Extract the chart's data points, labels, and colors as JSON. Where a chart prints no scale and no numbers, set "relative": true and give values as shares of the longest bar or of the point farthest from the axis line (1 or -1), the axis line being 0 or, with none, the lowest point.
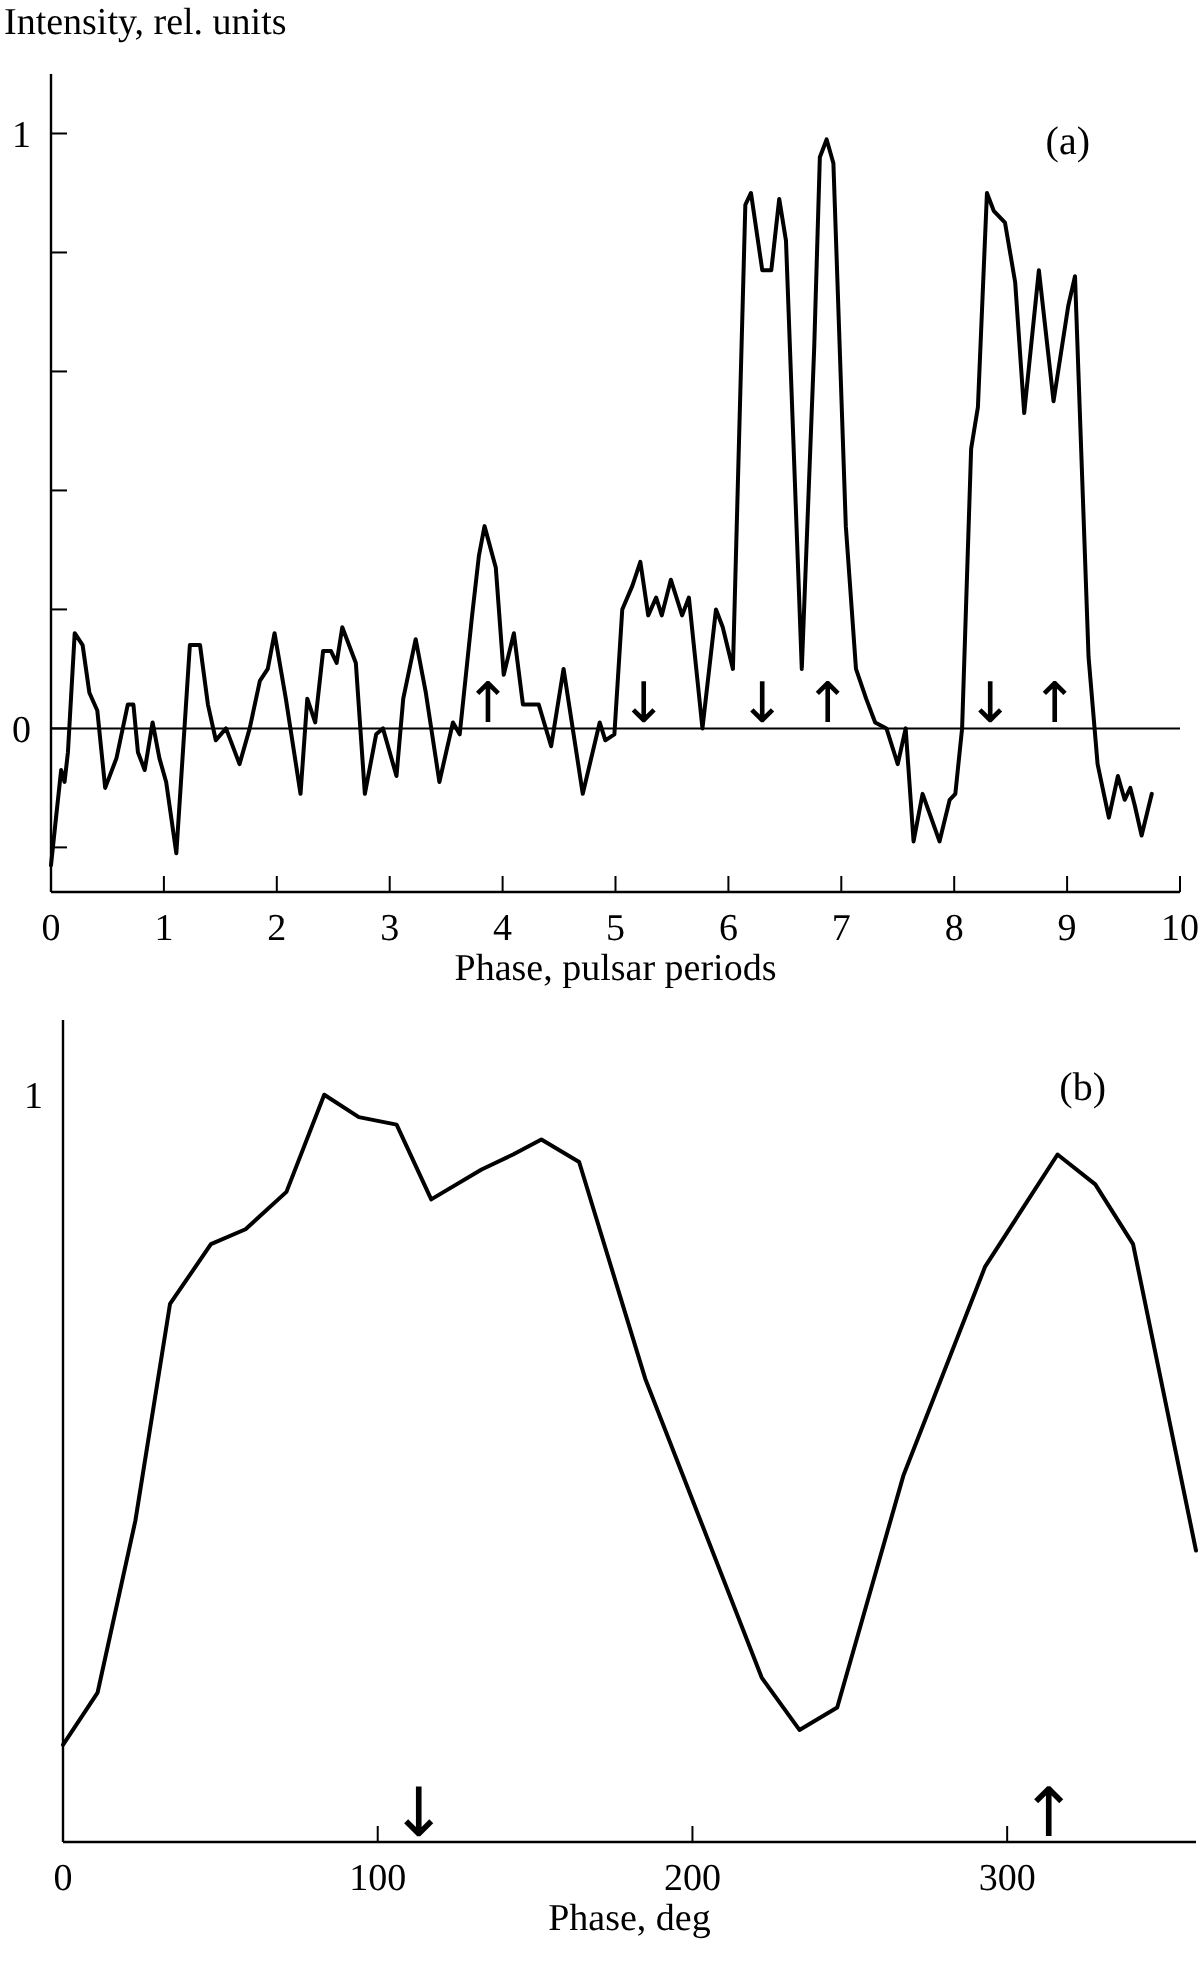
{
  "chart_data": [
    {
      "type": "line",
      "title": "(a)",
      "ylabel": "Intensity, rel. units",
      "xlabel": "Phase, pulsar periods",
      "xlim": [
        0,
        10
      ],
      "xticks": [
        0,
        1,
        2,
        3,
        4,
        5,
        6,
        7,
        8,
        9,
        10
      ],
      "ylim": [
        -0.275,
        1.1
      ],
      "yticks": [
        {
          "value": -0.2,
          "label": null
        },
        0,
        {
          "value": 0.2,
          "label": null
        },
        {
          "value": 0.4,
          "label": null
        },
        {
          "value": 0.6,
          "label": null
        },
        {
          "value": 0.8,
          "label": null
        },
        1
      ],
      "ref_lines": [
        {
          "axis": "y",
          "value": 0,
          "color": "#000000"
        }
      ],
      "annotations": [
        {
          "text": "↑",
          "x": 3.87,
          "y": 0
        },
        {
          "text": "↓",
          "x": 5.25,
          "y": 0
        },
        {
          "text": "↓",
          "x": 6.3,
          "y": 0
        },
        {
          "text": "↑",
          "x": 6.88,
          "y": 0
        },
        {
          "text": "↓",
          "x": 8.32,
          "y": 0
        },
        {
          "text": "↑",
          "x": 8.89,
          "y": 0
        }
      ],
      "marker": "none",
      "line_style": "solid",
      "series": [
        {
          "color": "#000000",
          "x": [
            0,
            0.05,
            0.09,
            0.12,
            0.15,
            0.21,
            0.28,
            0.34,
            0.41,
            0.48,
            0.58,
            0.68,
            0.73,
            0.77,
            0.83,
            0.9,
            0.96,
            1.02,
            1.11,
            1.23,
            1.32,
            1.39,
            1.46,
            1.55,
            1.67,
            1.76,
            1.85,
            1.92,
            1.98,
            2.08,
            2.21,
            2.27,
            2.34,
            2.41,
            2.48,
            2.53,
            2.58,
            2.7,
            2.78,
            2.88,
            2.94,
            3.06,
            3.12,
            3.23,
            3.32,
            3.44,
            3.56,
            3.62,
            3.73,
            3.79,
            3.84,
            3.94,
            4.01,
            4.1,
            4.18,
            4.32,
            4.43,
            4.54,
            4.71,
            4.86,
            4.91,
            4.99,
            5.06,
            5.15,
            5.22,
            5.29,
            5.36,
            5.41,
            5.49,
            5.59,
            5.65,
            5.77,
            5.89,
            5.95,
            6.04,
            6.15,
            6.2,
            6.3,
            6.38,
            6.45,
            6.51,
            6.65,
            6.76,
            6.81,
            6.87,
            6.93,
            7.04,
            7.13,
            7.22,
            7.3,
            7.4,
            7.5,
            7.57,
            7.64,
            7.72,
            7.87,
            7.96,
            8.01,
            8.07,
            8.15,
            8.21,
            8.29,
            8.35,
            8.45,
            8.54,
            8.62,
            8.75,
            8.88,
            9.01,
            9.07,
            9.19,
            9.27,
            9.37,
            9.45,
            9.51,
            9.56,
            9.6,
            9.66,
            9.75
          ],
          "values": [
            -0.23,
            -0.14,
            -0.07,
            -0.09,
            -0.04,
            0.16,
            0.14,
            0.06,
            0.03,
            -0.1,
            -0.05,
            0.04,
            0.04,
            -0.04,
            -0.07,
            0.01,
            -0.05,
            -0.09,
            -0.21,
            0.14,
            0.14,
            0.04,
            -0.02,
            0,
            -0.06,
            0,
            0.08,
            0.1,
            0.16,
            0.05,
            -0.11,
            0.05,
            0.01,
            0.13,
            0.13,
            0.11,
            0.17,
            0.11,
            -0.11,
            -0.01,
            0,
            -0.08,
            0.05,
            0.15,
            0.06,
            -0.09,
            0.01,
            -0.01,
            0.19,
            0.29,
            0.34,
            0.27,
            0.09,
            0.16,
            0.04,
            0.04,
            -0.03,
            0.1,
            -0.11,
            0.01,
            -0.02,
            -0.01,
            0.2,
            0.24,
            0.28,
            0.19,
            0.22,
            0.19,
            0.25,
            0.19,
            0.22,
            0,
            0.2,
            0.17,
            0.1,
            0.88,
            0.9,
            0.77,
            0.77,
            0.89,
            0.82,
            0.1,
            0.64,
            0.96,
            0.99,
            0.95,
            0.34,
            0.1,
            0.05,
            0.01,
            0,
            -0.06,
            0,
            -0.19,
            -0.11,
            -0.19,
            -0.12,
            -0.11,
            0,
            0.47,
            0.54,
            0.9,
            0.87,
            0.85,
            0.75,
            0.53,
            0.77,
            0.55,
            0.71,
            0.76,
            0.12,
            -0.06,
            -0.15,
            -0.08,
            -0.12,
            -0.1,
            -0.13,
            -0.18,
            -0.11
          ]
        }
      ]
    },
    {
      "type": "line",
      "title": "(b)",
      "xlabel": "Phase, deg",
      "xlim": [
        0,
        360
      ],
      "xticks": [
        0,
        100,
        200,
        300
      ],
      "relative": true,
      "annotations": [
        "1",
        "↓",
        "↑"
      ],
      "marker": "none",
      "line_style": "solid",
      "series": [
        {
          "color": "#000000",
          "x": [
            0,
            11,
            23,
            34,
            47,
            58,
            71,
            83,
            94,
            106,
            117,
            133,
            143,
            152,
            164,
            185,
            222,
            234,
            246,
            267,
            293,
            316,
            328,
            340,
            360
          ],
          "values": [
            0.13,
            0.2,
            0.43,
            0.72,
            0.8,
            0.82,
            0.87,
            1.0,
            0.97,
            0.96,
            0.86,
            0.9,
            0.92,
            0.94,
            0.91,
            0.62,
            0.22,
            0.15,
            0.18,
            0.49,
            0.77,
            0.92,
            0.88,
            0.8,
            0.39
          ]
        }
      ]
    }
  ]
}
